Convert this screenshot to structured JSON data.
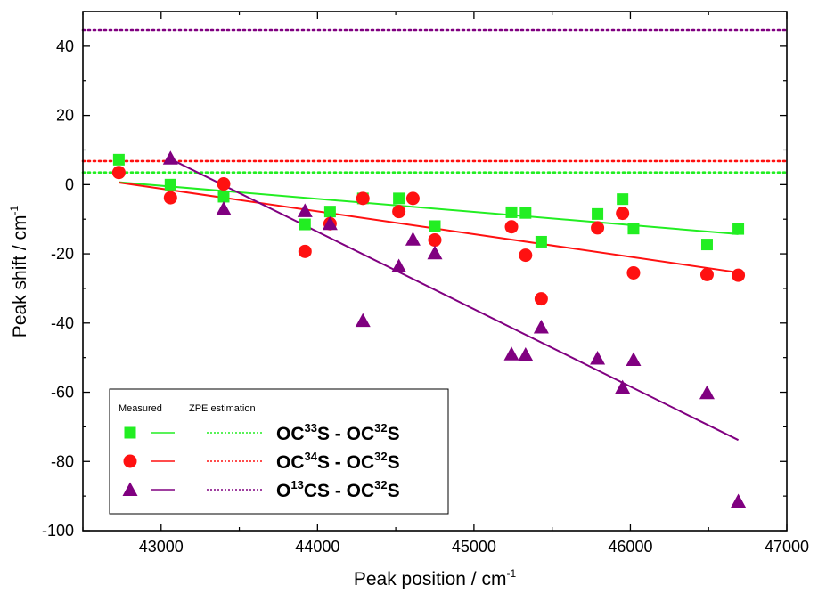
{
  "chart_data": {
    "type": "scatter",
    "xlabel": "Peak position / cm",
    "xlabel_sup": "-1",
    "ylabel": "Peak shift / cm",
    "ylabel_sup": "-1",
    "xlim": [
      42500,
      47000
    ],
    "ylim": [
      -100,
      50
    ],
    "xticks": [
      43000,
      44000,
      45000,
      46000,
      47000
    ],
    "yticks": [
      -100,
      -80,
      -60,
      -40,
      -20,
      0,
      20,
      40
    ],
    "grid": false,
    "legend": {
      "placement": "bottom-left",
      "measured_header": "Measured",
      "zpe_header": "ZPE estimation"
    },
    "series": [
      {
        "name": "OC33S - OC32S",
        "label_parts": [
          "OC",
          "33",
          "S - OC",
          "32",
          "S"
        ],
        "marker": "square",
        "color": "#22ee22",
        "points": [
          [
            42730,
            7.2
          ],
          [
            43060,
            0.0
          ],
          [
            43400,
            -3.5
          ],
          [
            43920,
            -11.5
          ],
          [
            44080,
            -7.8
          ],
          [
            44290,
            -4.0
          ],
          [
            44520,
            -4.0
          ],
          [
            44750,
            -12.0
          ],
          [
            45240,
            -8.0
          ],
          [
            45330,
            -8.2
          ],
          [
            45430,
            -16.5
          ],
          [
            45790,
            -8.5
          ],
          [
            45950,
            -4.2
          ],
          [
            46020,
            -12.7
          ],
          [
            46490,
            -17.3
          ],
          [
            46690,
            -12.8
          ]
        ],
        "fit": [
          [
            42730,
            0.7
          ],
          [
            46690,
            -14.3
          ]
        ],
        "zpe": 3.5
      },
      {
        "name": "OC34S - OC32S",
        "label_parts": [
          "OC",
          "34",
          "S - OC",
          "32",
          "S"
        ],
        "marker": "circle",
        "color": "#ff1111",
        "points": [
          [
            42730,
            3.5
          ],
          [
            43060,
            -3.8
          ],
          [
            43400,
            0.2
          ],
          [
            43920,
            -19.3
          ],
          [
            44080,
            -11.3
          ],
          [
            44290,
            -4.0
          ],
          [
            44520,
            -7.8
          ],
          [
            44610,
            -4.0
          ],
          [
            44750,
            -16.0
          ],
          [
            45240,
            -12.2
          ],
          [
            45330,
            -20.4
          ],
          [
            45430,
            -33.0
          ],
          [
            45790,
            -12.5
          ],
          [
            45950,
            -8.3
          ],
          [
            46020,
            -25.5
          ],
          [
            46490,
            -26.0
          ],
          [
            46690,
            -26.2
          ]
        ],
        "fit": [
          [
            42730,
            0.6
          ],
          [
            46690,
            -25.4
          ]
        ],
        "zpe": 6.8
      },
      {
        "name": "O13CS - OC32S",
        "label_parts": [
          "O",
          "13",
          "CS - OC",
          "32",
          "S"
        ],
        "marker": "triangle",
        "color": "#800080",
        "points": [
          [
            43060,
            7.6
          ],
          [
            43400,
            -7.0
          ],
          [
            43920,
            -7.6
          ],
          [
            44080,
            -11.3
          ],
          [
            44290,
            -39.3
          ],
          [
            44520,
            -23.6
          ],
          [
            44610,
            -15.8
          ],
          [
            44750,
            -19.8
          ],
          [
            45240,
            -49.0
          ],
          [
            45330,
            -49.2
          ],
          [
            45430,
            -41.2
          ],
          [
            45790,
            -50.2
          ],
          [
            45950,
            -58.6
          ],
          [
            46020,
            -50.6
          ],
          [
            46490,
            -60.2
          ],
          [
            46690,
            -91.5
          ]
        ],
        "fit": [
          [
            43060,
            7.4
          ],
          [
            46690,
            -73.8
          ]
        ],
        "zpe": 44.6
      }
    ]
  }
}
